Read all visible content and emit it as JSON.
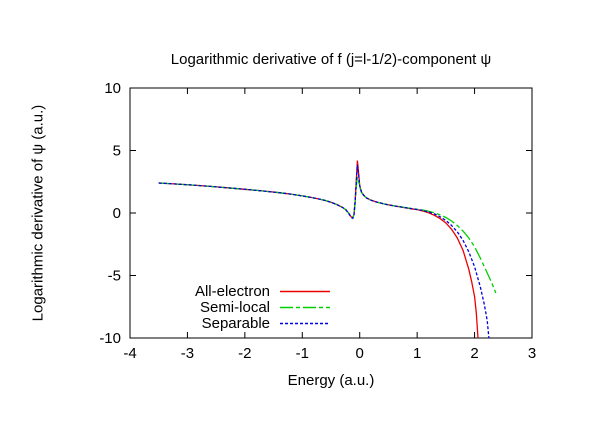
{
  "chart_data": {
    "type": "line",
    "title": "Logarithmic derivative of f (j=l-1/2)-component ψ",
    "xlabel": "Energy (a.u.)",
    "ylabel": "Logarithmic derivative of ψ (a.u.)",
    "xlim": [
      -4,
      3
    ],
    "ylim": [
      -10,
      10
    ],
    "xticks": [
      -4,
      -3,
      -2,
      -1,
      0,
      1,
      2,
      3
    ],
    "yticks": [
      -10,
      -5,
      0,
      5,
      10
    ],
    "grid": false,
    "legend_position": "inside-bottom-left",
    "axis_color": "#000000",
    "background_color": "#ffffff",
    "series": [
      {
        "name": "All-electron",
        "color": "#ee0000",
        "dash": "",
        "points": [
          [
            -3.5,
            2.4
          ],
          [
            -3.2,
            2.32
          ],
          [
            -2.9,
            2.23
          ],
          [
            -2.6,
            2.13
          ],
          [
            -2.3,
            2.02
          ],
          [
            -2.0,
            1.9
          ],
          [
            -1.7,
            1.77
          ],
          [
            -1.4,
            1.62
          ],
          [
            -1.2,
            1.51
          ],
          [
            -1.0,
            1.37
          ],
          [
            -0.85,
            1.25
          ],
          [
            -0.7,
            1.11
          ],
          [
            -0.6,
            1.0
          ],
          [
            -0.5,
            0.86
          ],
          [
            -0.4,
            0.68
          ],
          [
            -0.3,
            0.45
          ],
          [
            -0.24,
            0.26
          ],
          [
            -0.19,
            -0.02
          ],
          [
            -0.15,
            -0.3
          ],
          [
            -0.12,
            -0.38
          ],
          [
            -0.1,
            -0.12
          ],
          [
            -0.08,
            0.9
          ],
          [
            -0.06,
            2.6
          ],
          [
            -0.04,
            4.2
          ],
          [
            -0.02,
            3.2
          ],
          [
            0.0,
            2.2
          ],
          [
            0.03,
            1.7
          ],
          [
            0.07,
            1.42
          ],
          [
            0.12,
            1.2
          ],
          [
            0.2,
            1.02
          ],
          [
            0.3,
            0.87
          ],
          [
            0.45,
            0.7
          ],
          [
            0.6,
            0.57
          ],
          [
            0.75,
            0.45
          ],
          [
            0.9,
            0.34
          ],
          [
            1.0,
            0.27
          ],
          [
            1.1,
            0.16
          ],
          [
            1.2,
            0.02
          ],
          [
            1.3,
            -0.18
          ],
          [
            1.4,
            -0.45
          ],
          [
            1.5,
            -0.8
          ],
          [
            1.6,
            -1.3
          ],
          [
            1.7,
            -2.0
          ],
          [
            1.8,
            -3.0
          ],
          [
            1.9,
            -4.5
          ],
          [
            1.95,
            -5.5
          ],
          [
            2.0,
            -6.7
          ],
          [
            2.03,
            -8.0
          ],
          [
            2.06,
            -10.0
          ]
        ]
      },
      {
        "name": "Semi-local",
        "color": "#00d000",
        "dash": "13,3,4,3",
        "points": [
          [
            -3.5,
            2.4
          ],
          [
            -3.2,
            2.32
          ],
          [
            -2.9,
            2.23
          ],
          [
            -2.6,
            2.13
          ],
          [
            -2.3,
            2.02
          ],
          [
            -2.0,
            1.9
          ],
          [
            -1.7,
            1.77
          ],
          [
            -1.4,
            1.62
          ],
          [
            -1.2,
            1.51
          ],
          [
            -1.0,
            1.37
          ],
          [
            -0.85,
            1.25
          ],
          [
            -0.7,
            1.11
          ],
          [
            -0.6,
            1.0
          ],
          [
            -0.5,
            0.86
          ],
          [
            -0.4,
            0.68
          ],
          [
            -0.3,
            0.45
          ],
          [
            -0.24,
            0.26
          ],
          [
            -0.19,
            -0.02
          ],
          [
            -0.15,
            -0.3
          ],
          [
            -0.12,
            -0.36
          ],
          [
            -0.1,
            -0.1
          ],
          [
            -0.08,
            0.8
          ],
          [
            -0.06,
            2.1
          ],
          [
            -0.04,
            2.9
          ],
          [
            -0.02,
            2.6
          ],
          [
            0.0,
            2.1
          ],
          [
            0.03,
            1.65
          ],
          [
            0.07,
            1.42
          ],
          [
            0.12,
            1.2
          ],
          [
            0.2,
            1.02
          ],
          [
            0.3,
            0.87
          ],
          [
            0.45,
            0.7
          ],
          [
            0.6,
            0.58
          ],
          [
            0.75,
            0.47
          ],
          [
            0.9,
            0.36
          ],
          [
            1.0,
            0.3
          ],
          [
            1.1,
            0.24
          ],
          [
            1.2,
            0.14
          ],
          [
            1.3,
            0.02
          ],
          [
            1.4,
            -0.14
          ],
          [
            1.5,
            -0.36
          ],
          [
            1.6,
            -0.64
          ],
          [
            1.7,
            -1.0
          ],
          [
            1.8,
            -1.45
          ],
          [
            1.9,
            -2.0
          ],
          [
            2.0,
            -2.7
          ],
          [
            2.1,
            -3.6
          ],
          [
            2.2,
            -4.6
          ],
          [
            2.3,
            -5.6
          ],
          [
            2.37,
            -6.4
          ]
        ]
      },
      {
        "name": "Separable",
        "color": "#0000e0",
        "dash": "3,2",
        "points": [
          [
            -3.5,
            2.4
          ],
          [
            -3.2,
            2.32
          ],
          [
            -2.9,
            2.23
          ],
          [
            -2.6,
            2.13
          ],
          [
            -2.3,
            2.02
          ],
          [
            -2.0,
            1.9
          ],
          [
            -1.7,
            1.77
          ],
          [
            -1.4,
            1.62
          ],
          [
            -1.2,
            1.51
          ],
          [
            -1.0,
            1.37
          ],
          [
            -0.85,
            1.25
          ],
          [
            -0.7,
            1.11
          ],
          [
            -0.6,
            1.0
          ],
          [
            -0.5,
            0.86
          ],
          [
            -0.4,
            0.68
          ],
          [
            -0.3,
            0.45
          ],
          [
            -0.24,
            0.26
          ],
          [
            -0.19,
            -0.05
          ],
          [
            -0.15,
            -0.34
          ],
          [
            -0.12,
            -0.42
          ],
          [
            -0.1,
            -0.12
          ],
          [
            -0.08,
            0.9
          ],
          [
            -0.06,
            2.5
          ],
          [
            -0.04,
            3.85
          ],
          [
            -0.02,
            3.1
          ],
          [
            0.0,
            2.2
          ],
          [
            0.03,
            1.7
          ],
          [
            0.07,
            1.42
          ],
          [
            0.12,
            1.2
          ],
          [
            0.2,
            1.02
          ],
          [
            0.3,
            0.87
          ],
          [
            0.45,
            0.7
          ],
          [
            0.6,
            0.57
          ],
          [
            0.75,
            0.46
          ],
          [
            0.9,
            0.35
          ],
          [
            1.0,
            0.28
          ],
          [
            1.1,
            0.2
          ],
          [
            1.2,
            0.08
          ],
          [
            1.3,
            -0.07
          ],
          [
            1.4,
            -0.3
          ],
          [
            1.5,
            -0.6
          ],
          [
            1.6,
            -1.0
          ],
          [
            1.7,
            -1.5
          ],
          [
            1.8,
            -2.2
          ],
          [
            1.9,
            -3.1
          ],
          [
            2.0,
            -4.3
          ],
          [
            2.1,
            -5.9
          ],
          [
            2.17,
            -7.3
          ],
          [
            2.22,
            -8.6
          ],
          [
            2.25,
            -10.0
          ]
        ]
      }
    ]
  }
}
